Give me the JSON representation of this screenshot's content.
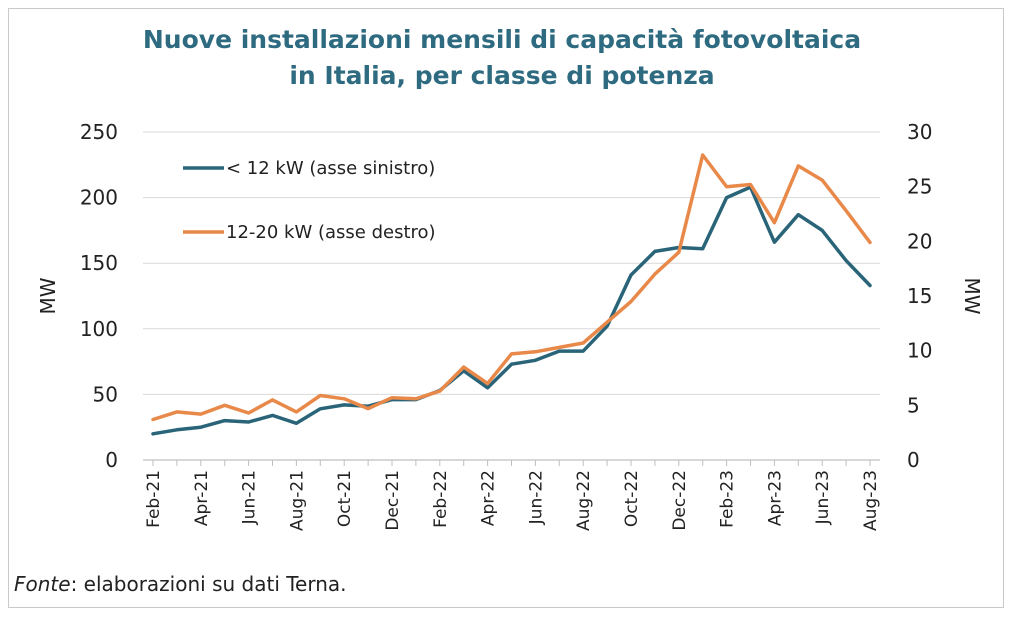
{
  "title_line1": "Nuove installazioni mensili di capacità fotovoltaica",
  "title_line2": "in Italia, per classe di potenza",
  "source_label": "Fonte",
  "source_text": ": elaborazioni su dati Terna.",
  "colors": {
    "title": "#2e6b80",
    "small": "#2a6478",
    "mid": "#e8894a",
    "grid": "#d9d9d9"
  },
  "chart_data": {
    "type": "line",
    "xlabel": "",
    "ylabel_left": "MW",
    "ylabel_right": "MW",
    "ylim_left": [
      0,
      250
    ],
    "ylim_right": [
      0,
      30
    ],
    "yticks_left": [
      "0",
      "50",
      "100",
      "150",
      "200",
      "250"
    ],
    "yticks_right": [
      "0",
      "5",
      "10",
      "15",
      "20",
      "25",
      "30"
    ],
    "grid": "horizontal",
    "legend_position": "top-left",
    "x": [
      "Feb-21",
      "Mar-21",
      "Apr-21",
      "May-21",
      "Jun-21",
      "Jul-21",
      "Aug-21",
      "Sep-21",
      "Oct-21",
      "Nov-21",
      "Dec-21",
      "Jan-22",
      "Feb-22",
      "Mar-22",
      "Apr-22",
      "May-22",
      "Jun-22",
      "Jul-22",
      "Aug-22",
      "Sep-22",
      "Oct-22",
      "Nov-22",
      "Dec-22",
      "Jan-23",
      "Feb-23",
      "Mar-23",
      "Apr-23",
      "May-23",
      "Jun-23",
      "Jul-23",
      "Aug-23"
    ],
    "xtick_labels": [
      "Feb-21",
      "Apr-21",
      "Jun-21",
      "Aug-21",
      "Oct-21",
      "Dec-21",
      "Feb-22",
      "Apr-22",
      "Jun-22",
      "Aug-22",
      "Oct-22",
      "Dec-22",
      "Feb-23",
      "Apr-23",
      "Jun-23",
      "Aug-23"
    ],
    "series": [
      {
        "name": "< 12 kW (asse sinistro)",
        "axis": "left",
        "values": [
          20,
          23,
          25,
          30,
          29,
          34,
          28,
          39,
          42,
          41,
          46,
          46,
          53,
          68,
          55,
          73,
          76,
          83,
          83,
          102,
          141,
          159,
          162,
          161,
          200,
          208,
          166,
          187,
          175,
          152,
          133
        ]
      },
      {
        "name": "12-20 kW (asse destro)",
        "axis": "right",
        "values": [
          3.7,
          4.4,
          4.2,
          5.0,
          4.3,
          5.5,
          4.4,
          5.9,
          5.6,
          4.7,
          5.7,
          5.6,
          6.3,
          8.5,
          7.0,
          9.7,
          9.9,
          10.3,
          10.7,
          12.6,
          14.5,
          17.0,
          19.0,
          27.9,
          25.0,
          25.2,
          21.7,
          26.9,
          25.6,
          22.8,
          19.9
        ]
      }
    ]
  }
}
